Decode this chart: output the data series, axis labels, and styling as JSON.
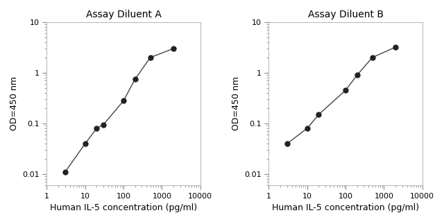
{
  "chart_A": {
    "title": "Assay Diluent A",
    "x": [
      3,
      10,
      20,
      30,
      100,
      200,
      500,
      2000
    ],
    "y": [
      0.011,
      0.04,
      0.08,
      0.095,
      0.28,
      0.75,
      2.0,
      3.0
    ]
  },
  "chart_B": {
    "title": "Assay Diluent B",
    "x": [
      3,
      10,
      20,
      100,
      200,
      500,
      2000
    ],
    "y": [
      0.04,
      0.08,
      0.15,
      0.45,
      0.9,
      2.0,
      3.2
    ]
  },
  "xlabel": "Human IL-5 concentration (pg/ml)",
  "ylabel": "OD=450 nm",
  "xlim": [
    1,
    10000
  ],
  "ylim": [
    0.006,
    10
  ],
  "line_color": "#444444",
  "marker_color": "#222222",
  "marker_size": 5,
  "title_fontsize": 10,
  "label_fontsize": 9,
  "tick_fontsize": 8,
  "background_color": "#ffffff"
}
